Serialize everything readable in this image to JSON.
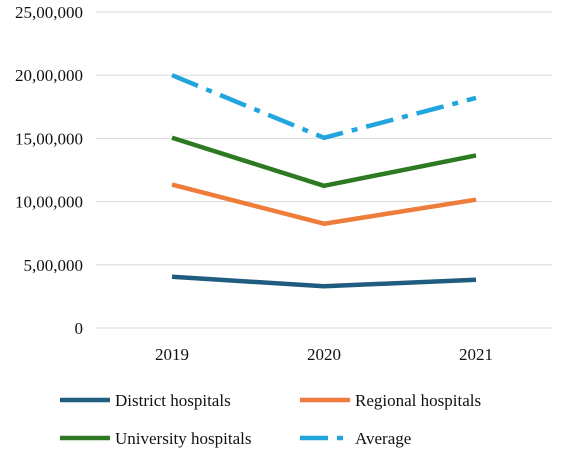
{
  "chart_data": {
    "type": "line",
    "categories": [
      "2019",
      "2020",
      "2021"
    ],
    "ylim": [
      0,
      2500000
    ],
    "yticks": [
      0,
      500000,
      1000000,
      1500000,
      2000000,
      2500000
    ],
    "ytick_labels": [
      "0",
      "5,00,000",
      "10,00,000",
      "15,00,000",
      "20,00,000",
      "25,00,000"
    ],
    "grid": true,
    "legend_position": "bottom",
    "title": "",
    "xlabel": "",
    "ylabel": "",
    "series": [
      {
        "name": "District hospitals",
        "values": [
          405000,
          330000,
          382000
        ],
        "color": "#1f5c7e",
        "style": "solid"
      },
      {
        "name": "Regional hospitals",
        "values": [
          1135000,
          825000,
          1015000
        ],
        "color": "#ee7d3b",
        "style": "solid"
      },
      {
        "name": "University hospitals",
        "values": [
          1505000,
          1125000,
          1365000
        ],
        "color": "#2d7a22",
        "style": "solid"
      },
      {
        "name": "Average",
        "values": [
          2000000,
          1505000,
          1820000
        ],
        "color": "#22a5dc",
        "style": "dashdot"
      }
    ]
  }
}
